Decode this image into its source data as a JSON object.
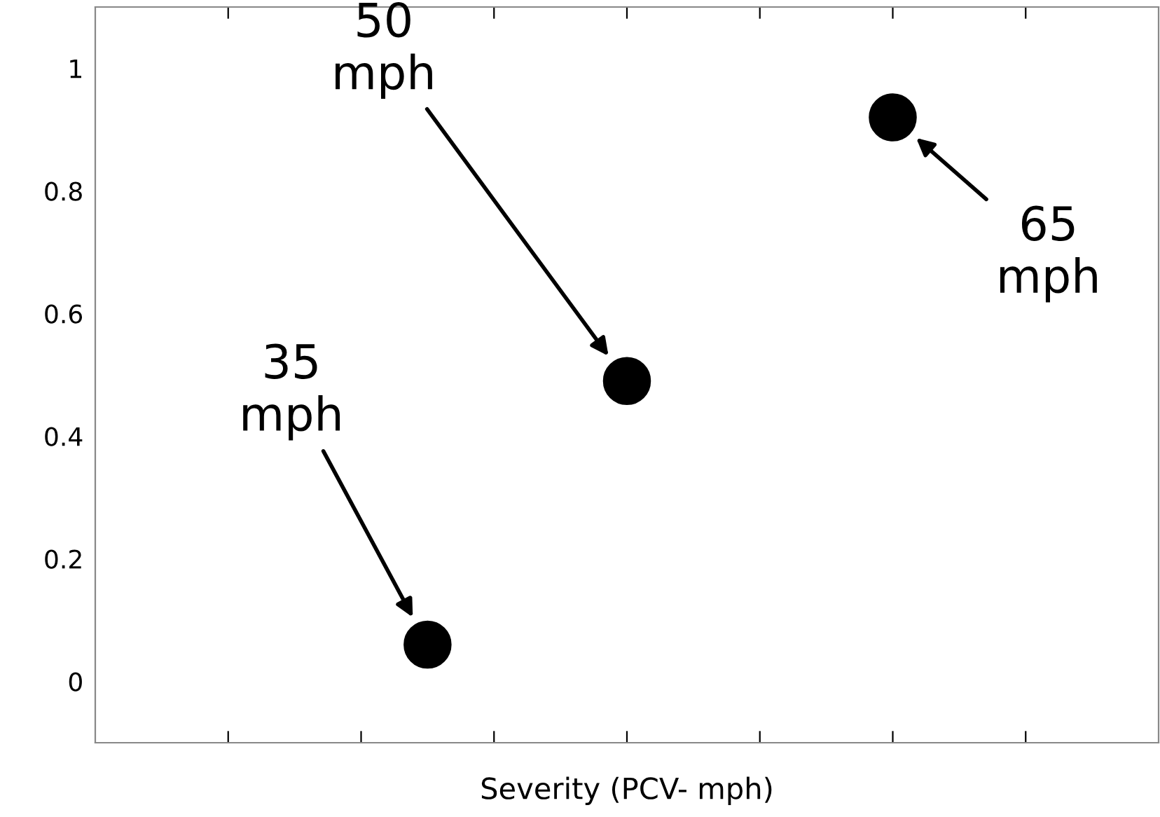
{
  "chart_data": {
    "type": "scatter",
    "xlabel": "Severity (PCV- mph)",
    "categories": [
      null,
      null,
      null,
      null,
      null,
      null,
      null,
      null,
      null,
      null,
      null,
      null,
      null,
      null,
      null,
      null,
      null
    ],
    "values": [
      null,
      null,
      null,
      null,
      null,
      0.06,
      null,
      null,
      0.49,
      null,
      null,
      null,
      0.92,
      null,
      null,
      null,
      null
    ],
    "color": "#000000",
    "marker": "circle",
    "ylim": [
      -0.1,
      1.1
    ],
    "yticks": [
      0,
      0.2,
      0.4,
      0.6,
      0.8,
      1
    ],
    "grid": false,
    "annotations": [
      "35\nmph",
      "50\nmph",
      "65\nmph"
    ]
  }
}
